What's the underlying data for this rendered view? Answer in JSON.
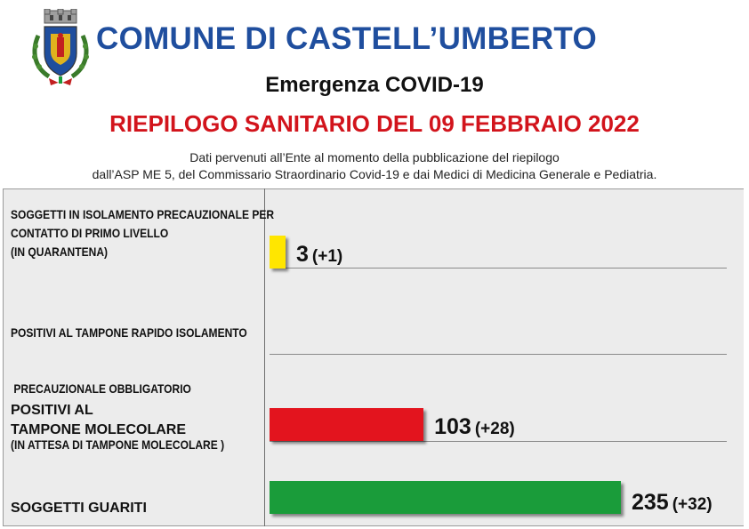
{
  "header": {
    "municipality": "COMUNE DI CASTELL’UMBERTO",
    "subtitle": "Emergenza COVID-19",
    "report_title": "RIEPILOGO SANITARIO DEL 09 FEBBRAIO 2022",
    "note_line1": "Dati pervenuti all’Ente al momento della pubblicazione del riepilogo",
    "note_line2": "dall’ASP ME 5, del Commissario Straordinario Covid-19 e dai Medici di Medicina Generale e Pediatria."
  },
  "crest": {
    "icon": "municipal-coat-of-arms-icon"
  },
  "chart_data": {
    "type": "bar",
    "orientation": "horizontal",
    "categories": [
      "SOGGETTI IN ISOLAMENTO PRECAUZIONALE PER CONTATTO DI PRIMO LIVELLO (IN QUARANTENA)",
      "POSITIVI AL TAMPONE RAPIDO ISOLAMENTO PRECAUZIONALE OBBLIGATORIO (IN ATTESA DI TAMPONE MOLECOLARE)",
      "POSITIVI AL TAMPONE MOLECOLARE",
      "SOGGETTI GUARITI"
    ],
    "values": [
      3,
      null,
      103,
      235
    ],
    "value_labels": [
      "3",
      "",
      "103",
      "235"
    ],
    "deltas": [
      "(+1)",
      "",
      "(+28)",
      "(+32)"
    ],
    "colors": [
      "#ffe600",
      "#cccccc",
      "#e3141e",
      "#1a9c3a"
    ],
    "xlim": [
      0,
      235
    ],
    "grid": false,
    "legend": "none"
  },
  "rows": [
    {
      "lines": [
        "SOGGETTI IN ISOLAMENTO PRECAUZIONALE PER",
        "CONTATTO DI PRIMO LIVELLO",
        "(IN QUARANTENA)"
      ]
    },
    {
      "lines": [
        "POSITIVI AL TAMPONE RAPIDO ISOLAMENTO",
        " PRECAUZIONALE OBBLIGATORIO",
        "(IN ATTESA DI TAMPONE MOLECOLARE )"
      ]
    },
    {
      "lines": [
        "POSITIVI AL",
        "TAMPONE MOLECOLARE"
      ]
    },
    {
      "lines": [
        "SOGGETTI GUARITI"
      ]
    }
  ]
}
